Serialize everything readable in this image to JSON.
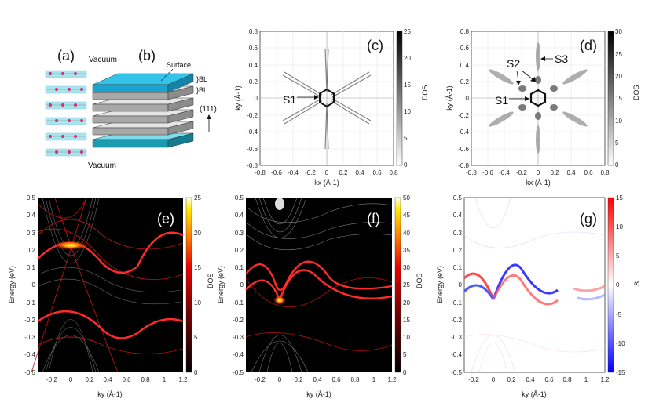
{
  "panel_labels": {
    "a": "(a)",
    "b": "(b)",
    "c": "(c)",
    "d": "(d)",
    "e": "(e)",
    "f": "(f)",
    "g": "(g)"
  },
  "schematic": {
    "vacuum_top": "Vacuum",
    "vacuum_bottom": "Vacuum",
    "surface": "Surface",
    "bl1": "}BL",
    "bl2": "}BL",
    "direction": "(111)"
  },
  "fermi_surface": {
    "xlabel": "kx (Å-1)",
    "ylabel": "ky (Å-1)",
    "x_ticks": [
      "-0.8",
      "-0.6",
      "-0.4",
      "-0.2",
      "0",
      "0.2",
      "0.4",
      "0.6",
      "0.8"
    ],
    "y_ticks": [
      "0.8",
      "0.6",
      "0.4",
      "0.2",
      "0",
      "-0.2",
      "-0.4",
      "-0.6",
      "-0.8"
    ],
    "c_colorbar_ticks": [
      "25",
      "20",
      "15",
      "10",
      "5",
      "0"
    ],
    "d_colorbar_ticks": [
      "30",
      "25",
      "20",
      "15",
      "10",
      "5",
      "0"
    ],
    "colorbar_label": "DOS",
    "s1": "S1",
    "s2": "S2",
    "s3": "S3"
  },
  "bands": {
    "xlabel": "ky (Å-1)",
    "ylabel": "Energy (eV)",
    "x_ticks": [
      "-0.2",
      "0",
      "0.2",
      "0.4",
      "0.6",
      "0.8",
      "1",
      "1.2"
    ],
    "y_ticks": [
      "0.5",
      "0.4",
      "0.3",
      "0.2",
      "0.1",
      "0",
      "-0.1",
      "-0.2",
      "-0.3",
      "-0.4",
      "-0.5"
    ],
    "e_colorbar_ticks": [
      "25",
      "20",
      "15",
      "10",
      "5",
      "0"
    ],
    "f_colorbar_ticks": [
      "50",
      "45",
      "40",
      "35",
      "30",
      "25",
      "20",
      "15",
      "10",
      "5",
      "0"
    ],
    "g_colorbar_ticks": [
      "15",
      "10",
      "5",
      "0",
      "-5",
      "-10",
      "-15"
    ],
    "dos_label": "DOS",
    "spin_label": "S"
  },
  "chart_data": [
    {
      "type": "heatmap",
      "title": "(c)",
      "xlabel": "kx (Å-1)",
      "ylabel": "ky (Å-1)",
      "xlim": [
        -0.8,
        0.8
      ],
      "ylim": [
        -0.8,
        0.8
      ],
      "colorbar": "DOS",
      "colorbar_range": [
        0,
        25
      ],
      "annotations": [
        "S1"
      ]
    },
    {
      "type": "heatmap",
      "title": "(d)",
      "xlabel": "kx (Å-1)",
      "ylabel": "ky (Å-1)",
      "xlim": [
        -0.8,
        0.8
      ],
      "ylim": [
        -0.8,
        0.8
      ],
      "colorbar": "DOS",
      "colorbar_range": [
        0,
        30
      ],
      "annotations": [
        "S1",
        "S2",
        "S3"
      ]
    },
    {
      "type": "heatmap",
      "title": "(e)",
      "xlabel": "ky (Å-1)",
      "ylabel": "Energy (eV)",
      "xlim": [
        -0.3,
        1.2
      ],
      "ylim": [
        -0.5,
        0.5
      ],
      "colorbar": "DOS",
      "colorbar_range": [
        0,
        25
      ]
    },
    {
      "type": "heatmap",
      "title": "(f)",
      "xlabel": "ky (Å-1)",
      "ylabel": "Energy (eV)",
      "xlim": [
        -0.3,
        1.2
      ],
      "ylim": [
        -0.5,
        0.5
      ],
      "colorbar": "DOS",
      "colorbar_range": [
        0,
        50
      ]
    },
    {
      "type": "heatmap",
      "title": "(g)",
      "xlabel": "ky (Å-1)",
      "ylabel": "Energy (eV)",
      "xlim": [
        -0.3,
        1.2
      ],
      "ylim": [
        -0.5,
        0.5
      ],
      "colorbar": "S",
      "colorbar_range": [
        -15,
        15
      ]
    }
  ]
}
